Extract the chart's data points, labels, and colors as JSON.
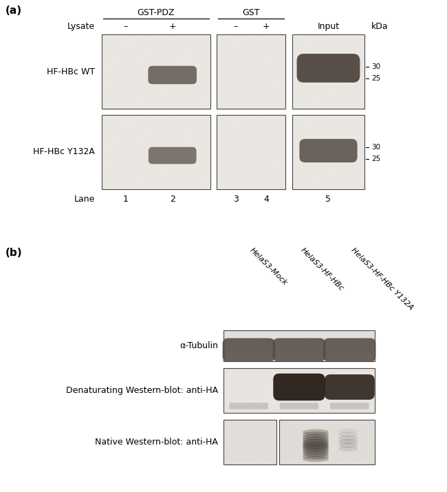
{
  "bg_color": "#ffffff",
  "panel_a": {
    "label": "(a)",
    "gst_pdz_label": "GST-PDZ",
    "gst_label": "GST",
    "lysate_label": "Lysate",
    "input_label": "Input",
    "kda_label": "kDa",
    "minus_plus": [
      "–",
      "+",
      "–",
      "+"
    ],
    "lane_label": "Lane",
    "lanes": [
      "1",
      "2",
      "3",
      "4",
      "5"
    ],
    "row_labels": [
      "HF-HBc WT",
      "HF-HBc Y132A"
    ],
    "kda_ticks_row1": [
      [
        "30",
        0.38
      ],
      [
        "25",
        0.62
      ]
    ],
    "kda_ticks_row2": [
      [
        "30",
        0.38
      ],
      [
        "25",
        0.62
      ]
    ]
  },
  "panel_b": {
    "label": "(b)",
    "col_labels": [
      "HelaS3-Mock",
      "HelaS3-HF-HBc",
      "HelaS3-HF-HBc Y132A"
    ],
    "row_labels": [
      "α-Tubulin",
      "Denaturating Western-blot: anti-HA",
      "Native Western-blot: anti-HA"
    ]
  }
}
